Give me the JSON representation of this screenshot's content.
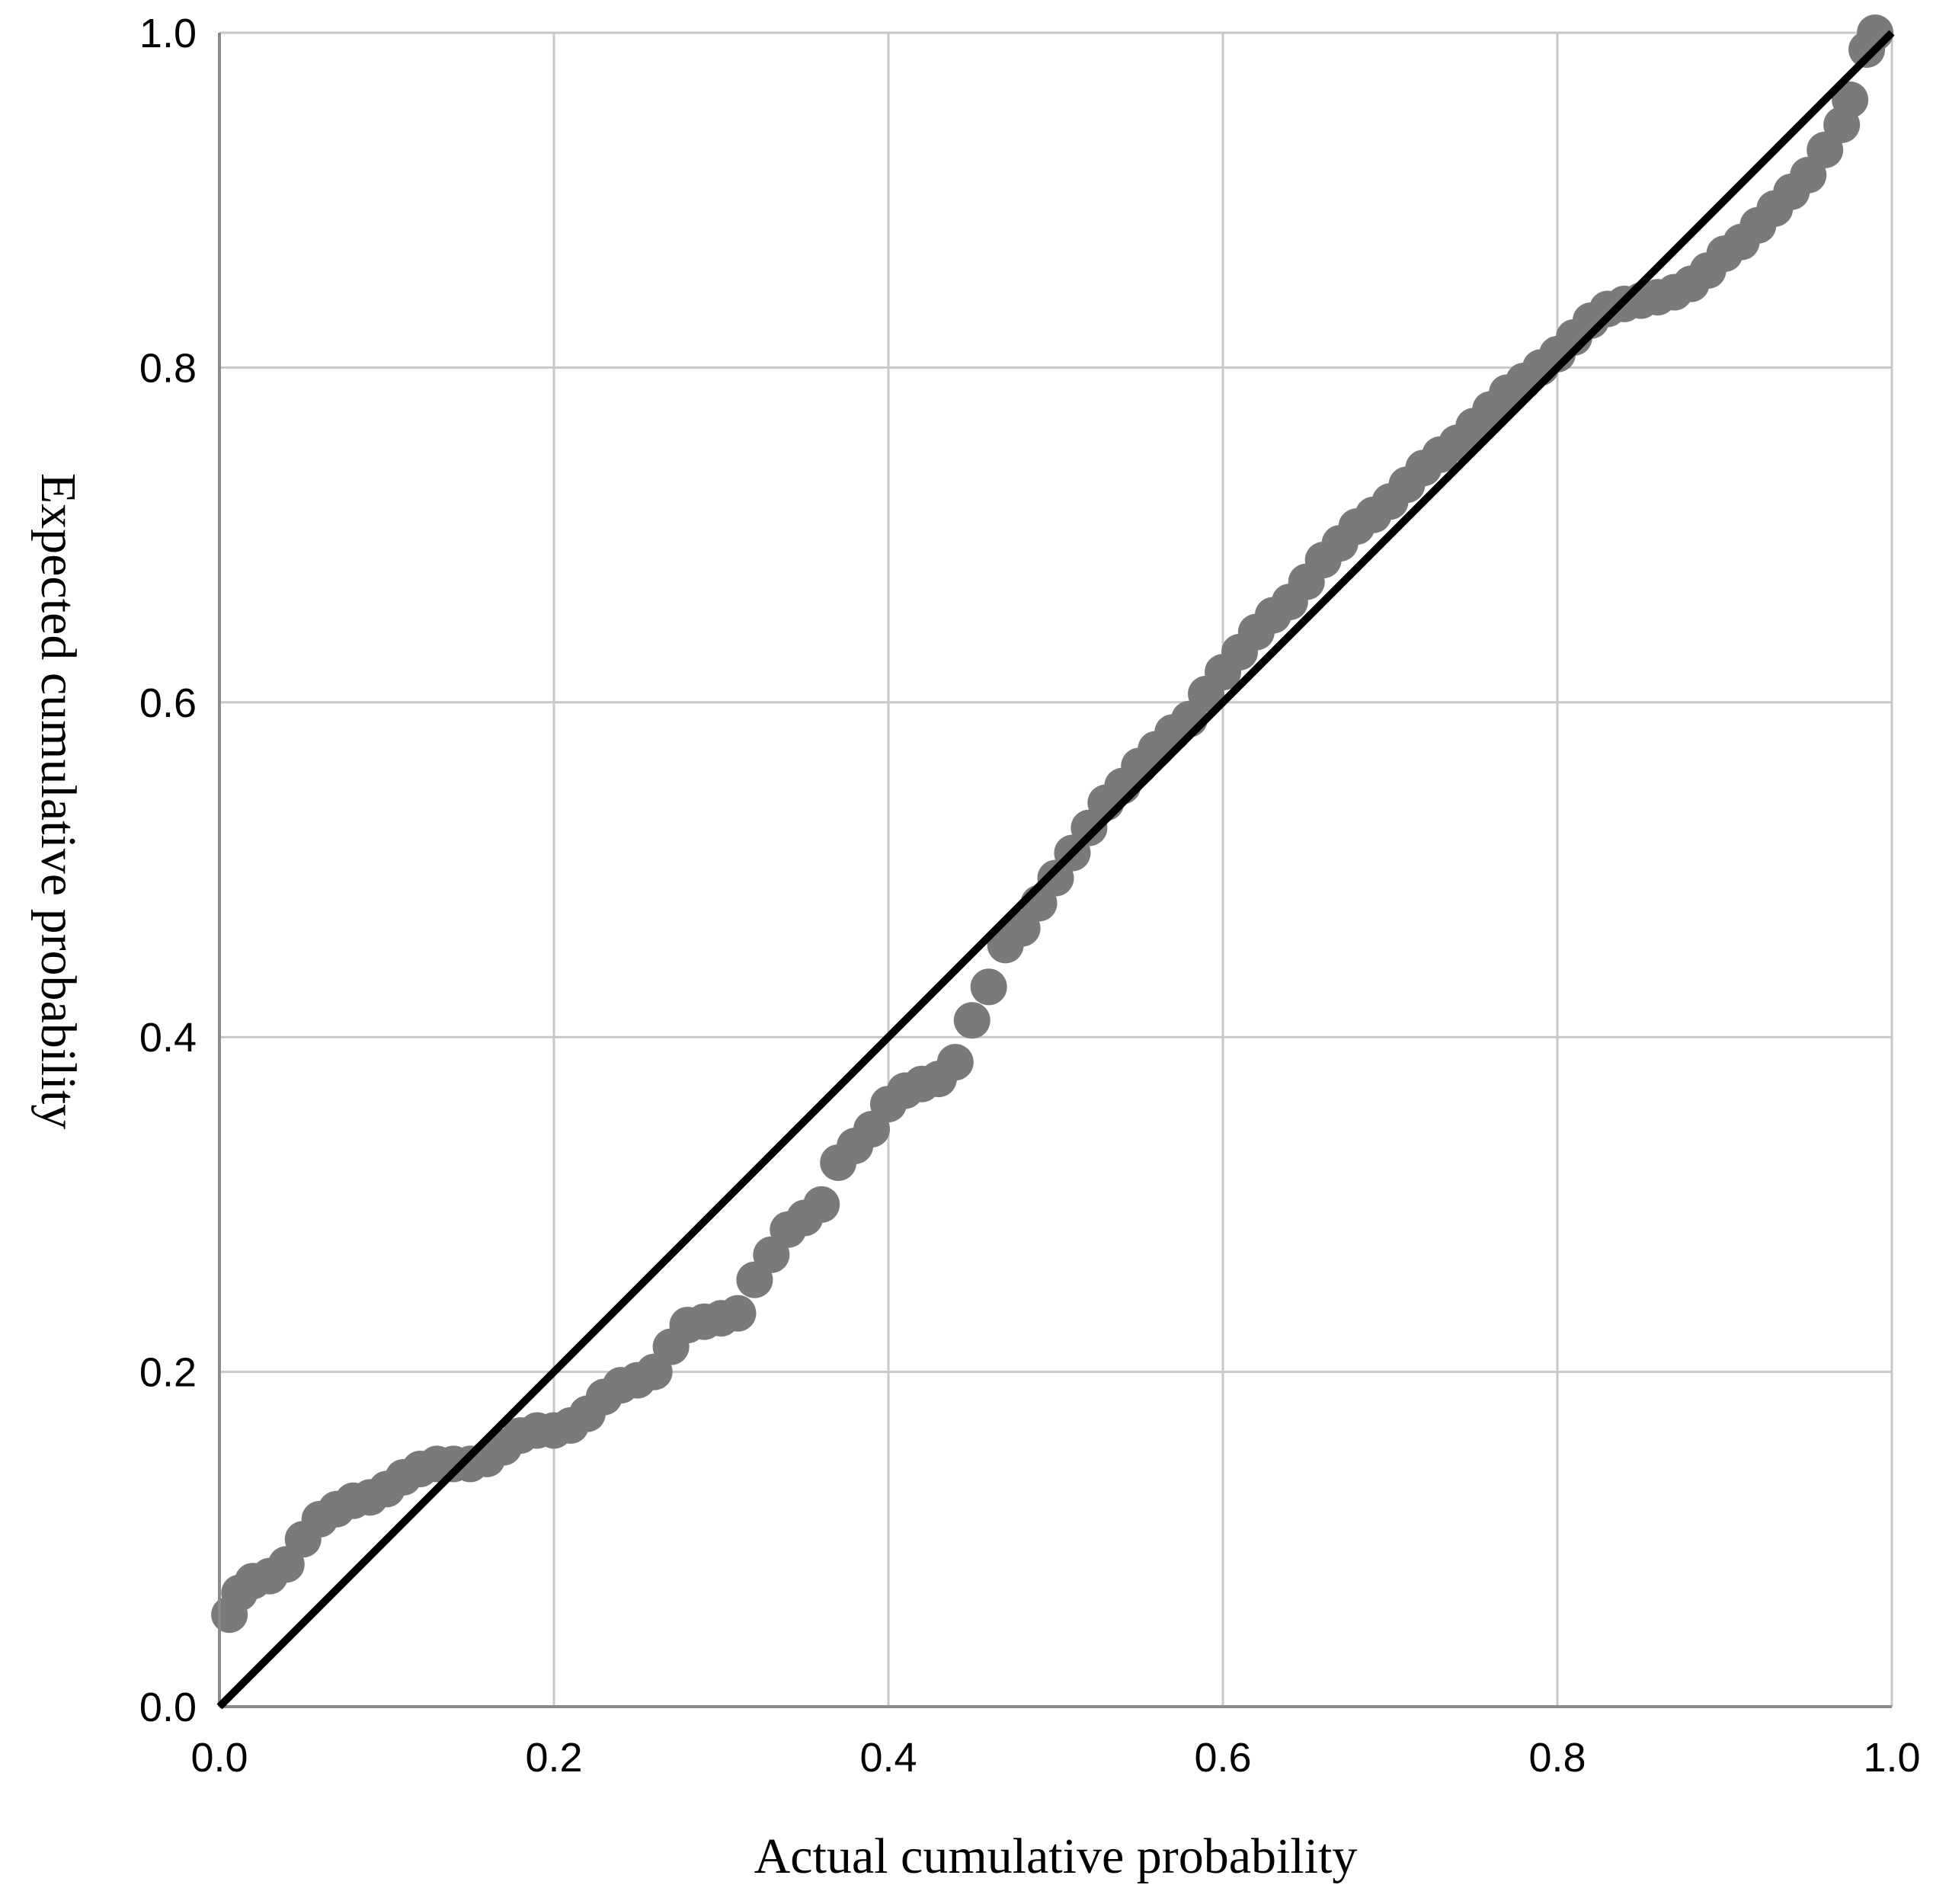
{
  "chart_data": {
    "type": "scatter",
    "xlabel": "Actual cumulative probability",
    "ylabel": "Expected cumulative probability",
    "xlim": [
      0.0,
      1.0
    ],
    "ylim": [
      0.0,
      1.0
    ],
    "grid": true,
    "x_ticks": [
      "0.0",
      "0.2",
      "0.4",
      "0.6",
      "0.8",
      "1.0"
    ],
    "y_ticks": [
      "0.0",
      "0.2",
      "0.4",
      "0.6",
      "0.8",
      "1.0"
    ],
    "reference_line": {
      "x": [
        0.0,
        1.0
      ],
      "y": [
        0.0,
        1.0
      ]
    },
    "points": {
      "x": [
        0.006,
        0.012,
        0.02,
        0.03,
        0.04,
        0.05,
        0.06,
        0.07,
        0.08,
        0.09,
        0.1,
        0.11,
        0.12,
        0.13,
        0.14,
        0.15,
        0.16,
        0.17,
        0.18,
        0.19,
        0.2,
        0.21,
        0.22,
        0.23,
        0.24,
        0.25,
        0.26,
        0.27,
        0.28,
        0.29,
        0.3,
        0.31,
        0.32,
        0.33,
        0.34,
        0.35,
        0.36,
        0.37,
        0.38,
        0.39,
        0.4,
        0.41,
        0.42,
        0.43,
        0.44,
        0.45,
        0.46,
        0.47,
        0.48,
        0.49,
        0.5,
        0.51,
        0.52,
        0.53,
        0.54,
        0.55,
        0.56,
        0.57,
        0.58,
        0.59,
        0.6,
        0.61,
        0.62,
        0.63,
        0.64,
        0.65,
        0.66,
        0.67,
        0.68,
        0.69,
        0.7,
        0.71,
        0.72,
        0.73,
        0.74,
        0.75,
        0.76,
        0.77,
        0.78,
        0.79,
        0.8,
        0.81,
        0.82,
        0.83,
        0.84,
        0.85,
        0.86,
        0.87,
        0.88,
        0.89,
        0.9,
        0.91,
        0.92,
        0.93,
        0.94,
        0.95,
        0.96,
        0.97,
        0.975,
        0.985,
        0.99
      ],
      "y": [
        0.055,
        0.068,
        0.075,
        0.078,
        0.085,
        0.1,
        0.112,
        0.118,
        0.123,
        0.125,
        0.13,
        0.137,
        0.142,
        0.145,
        0.145,
        0.145,
        0.148,
        0.155,
        0.162,
        0.165,
        0.165,
        0.168,
        0.175,
        0.185,
        0.192,
        0.195,
        0.2,
        0.215,
        0.228,
        0.23,
        0.232,
        0.235,
        0.255,
        0.27,
        0.285,
        0.292,
        0.3,
        0.325,
        0.335,
        0.345,
        0.36,
        0.368,
        0.372,
        0.375,
        0.385,
        0.41,
        0.43,
        0.455,
        0.465,
        0.48,
        0.495,
        0.51,
        0.525,
        0.54,
        0.55,
        0.562,
        0.572,
        0.582,
        0.59,
        0.605,
        0.618,
        0.63,
        0.642,
        0.652,
        0.66,
        0.672,
        0.685,
        0.695,
        0.705,
        0.712,
        0.72,
        0.73,
        0.74,
        0.748,
        0.755,
        0.765,
        0.775,
        0.785,
        0.792,
        0.8,
        0.808,
        0.818,
        0.828,
        0.835,
        0.838,
        0.84,
        0.842,
        0.845,
        0.85,
        0.858,
        0.868,
        0.875,
        0.885,
        0.895,
        0.905,
        0.915,
        0.93,
        0.945,
        0.96,
        0.99,
        1.0
      ]
    },
    "colors": {
      "points": "#7a7a7a",
      "reference_line": "#000000",
      "grid": "#c8c8c8",
      "axes": "#8a8a8a"
    }
  }
}
